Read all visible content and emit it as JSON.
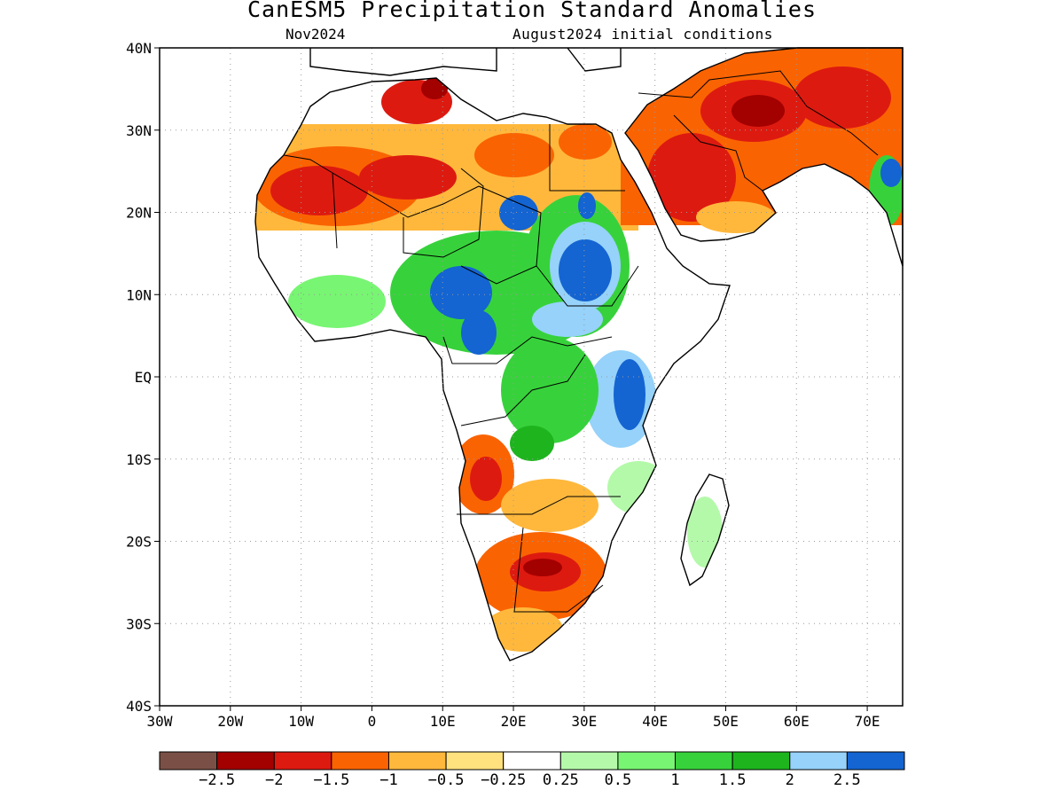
{
  "title": "CanESM5 Precipitation Standard Anomalies",
  "subtitle_left": "Nov2024",
  "subtitle_right": "August2024 initial conditions",
  "lat_ticks": [
    "40N",
    "30N",
    "20N",
    "10N",
    "EQ",
    "10S",
    "20S",
    "30S",
    "40S"
  ],
  "lon_ticks": [
    "30W",
    "20W",
    "10W",
    "0",
    "10E",
    "20E",
    "30E",
    "40E",
    "50E",
    "60E",
    "70E"
  ],
  "colorbar": {
    "colors": [
      "#7a5046",
      "#a30000",
      "#dd1a10",
      "#fa6302",
      "#ffb83c",
      "#ffe27e",
      "#ffffff",
      "#b4f9aa",
      "#78f573",
      "#37d23b",
      "#1eb41e",
      "#96d2fa",
      "#1464d2"
    ],
    "labels": [
      "-2.5",
      "-2",
      "-1.5",
      "-1",
      "-0.5",
      "-0.25",
      "0.25",
      "0.5",
      "1",
      "1.5",
      "2",
      "2.5"
    ]
  },
  "chart_data": {
    "type": "heatmap",
    "title": "CanESM5 Precipitation Standard Anomalies",
    "lon_range": [
      -30,
      75
    ],
    "lat_range": [
      -40,
      40
    ],
    "color_levels": [
      -2.5,
      -2,
      -1.5,
      -1,
      -0.5,
      -0.25,
      0.25,
      0.5,
      1,
      1.5,
      2,
      2.5
    ],
    "anomaly_regions": [
      {
        "lon": -20,
        "lat": 23,
        "value": -1.6
      },
      {
        "lon": -10,
        "lat": 24,
        "value": -1.4
      },
      {
        "lon": 0,
        "lat": 27,
        "value": -0.8
      },
      {
        "lon": 8,
        "lat": 35,
        "value": -2.2
      },
      {
        "lon": 13,
        "lat": 25,
        "value": -0.6
      },
      {
        "lon": 28,
        "lat": 27,
        "value": -0.8
      },
      {
        "lon": 44,
        "lat": 25,
        "value": -1.7
      },
      {
        "lon": 55,
        "lat": 32,
        "value": -2.1
      },
      {
        "lon": 70,
        "lat": 37,
        "value": -1.6
      },
      {
        "lon": 12,
        "lat": 8,
        "value": 1.2
      },
      {
        "lon": 12,
        "lat": 10,
        "value": 2.6
      },
      {
        "lon": 20,
        "lat": 20,
        "value": 2.3
      },
      {
        "lon": 31,
        "lat": 13,
        "value": 2.7
      },
      {
        "lon": 27,
        "lat": 8,
        "value": 1.4
      },
      {
        "lon": 36,
        "lat": -2,
        "value": 2.1
      },
      {
        "lon": 25,
        "lat": -5,
        "value": 1.3
      },
      {
        "lon": 16,
        "lat": -13,
        "value": -1.6
      },
      {
        "lon": 22,
        "lat": -17,
        "value": -0.5
      },
      {
        "lon": 23,
        "lat": -24,
        "value": -1.9
      },
      {
        "lon": 28,
        "lat": -27,
        "value": -1.0
      },
      {
        "lon": 38,
        "lat": -15,
        "value": 0.7
      },
      {
        "lon": 47,
        "lat": -19,
        "value": 0.6
      },
      {
        "lon": 72,
        "lat": 22,
        "value": 2.3
      }
    ]
  }
}
